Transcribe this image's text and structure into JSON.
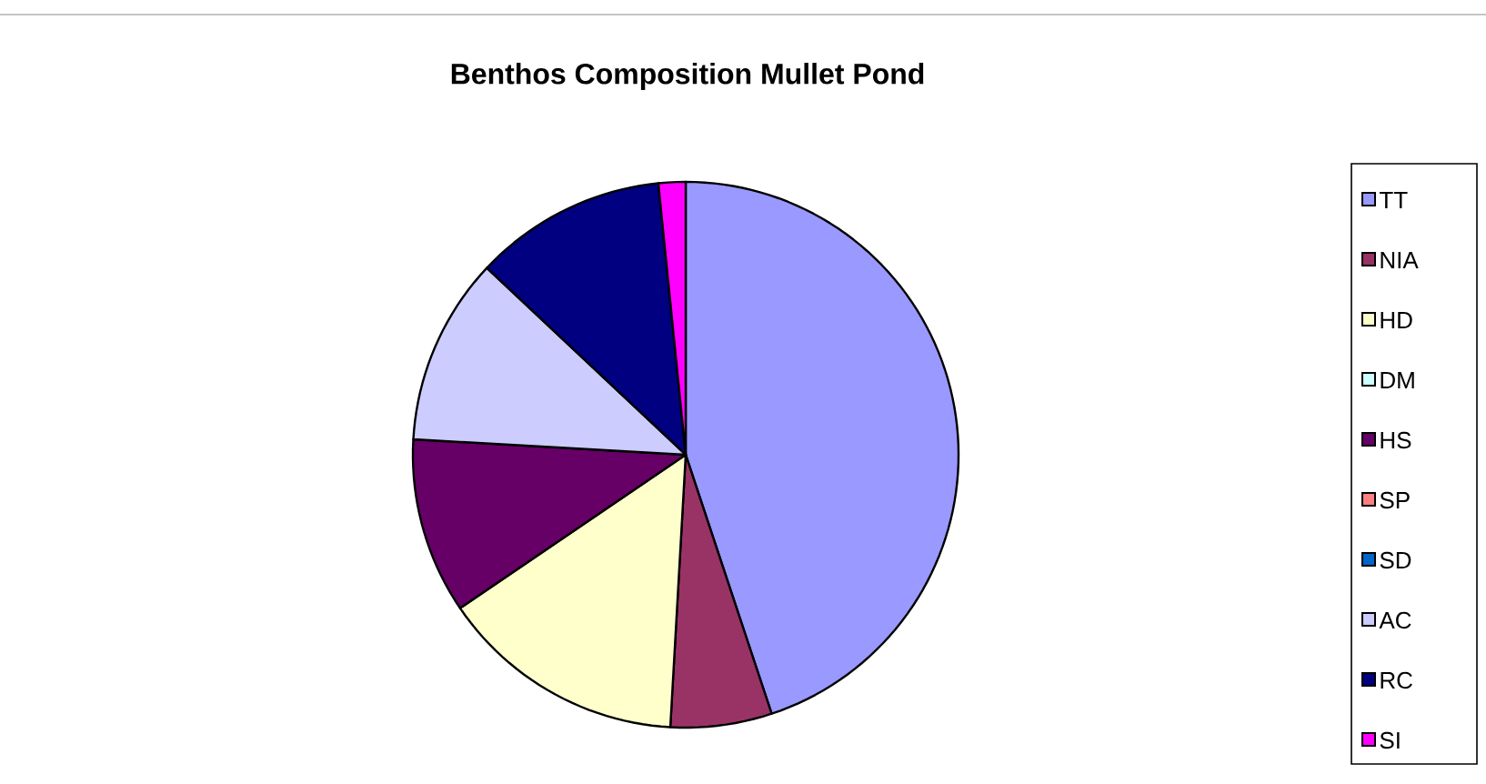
{
  "chart_data": {
    "type": "pie",
    "title": "Benthos Composition  Mullet Pond",
    "categories": [
      "TT",
      "NIA",
      "HD",
      "DM",
      "HS",
      "SP",
      "SD",
      "AC",
      "RC",
      "SI"
    ],
    "values": [
      44.9,
      6.0,
      14.6,
      0,
      10.4,
      0,
      0,
      11.1,
      11.4,
      1.6
    ],
    "colors": [
      "#9999ff",
      "#993366",
      "#ffffcc",
      "#ccffff",
      "#660066",
      "#ff8080",
      "#0066cc",
      "#ccccff",
      "#000080",
      "#ff00ff"
    ],
    "legend": "right"
  }
}
